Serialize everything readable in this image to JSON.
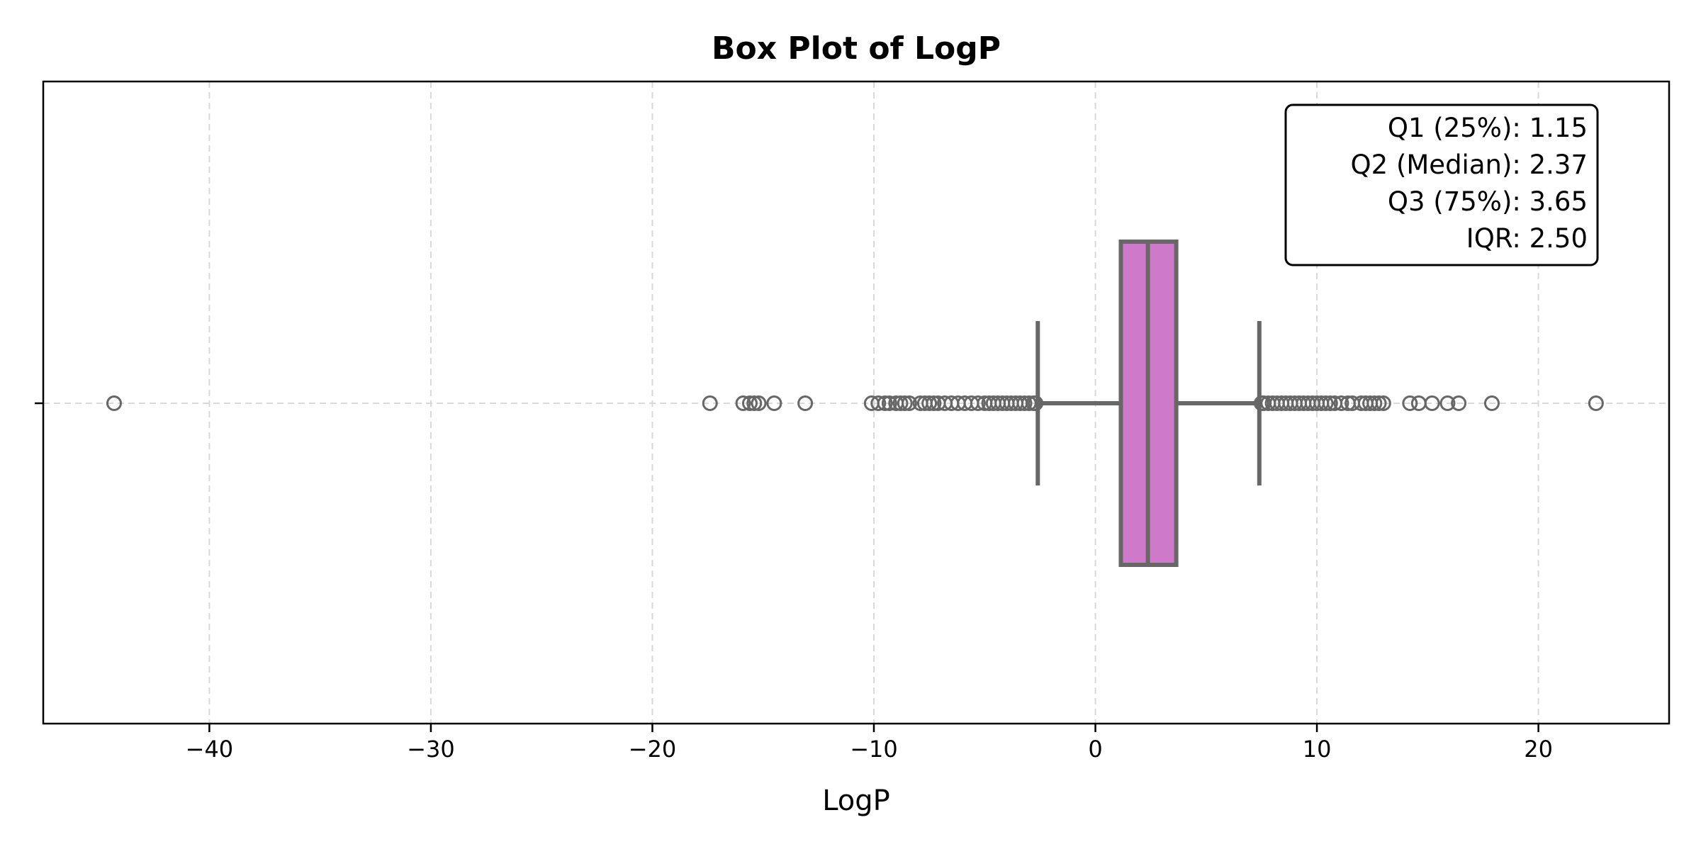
{
  "chart_data": {
    "type": "box",
    "title": "Box Plot of LogP",
    "xlabel": "LogP",
    "ylabel": "",
    "xlim": [
      -47.5,
      25.9
    ],
    "xticks": [
      -40,
      -30,
      -20,
      -10,
      0,
      10,
      20
    ],
    "xtick_labels": [
      "−40",
      "−30",
      "−20",
      "−10",
      "0",
      "10",
      "20"
    ],
    "grid": true,
    "orientation": "horizontal",
    "box": {
      "q1": 1.15,
      "median": 2.37,
      "q3": 3.65,
      "whisker_low": -2.6,
      "whisker_high": 7.4
    },
    "outliers": [
      -44.3,
      -17.4,
      -15.9,
      -15.6,
      -15.4,
      -15.2,
      -14.5,
      -13.1,
      -10.1,
      -9.8,
      -9.5,
      -9.3,
      -9.0,
      -8.8,
      -8.6,
      -8.4,
      -7.9,
      -7.7,
      -7.5,
      -7.3,
      -7.1,
      -6.8,
      -6.5,
      -6.2,
      -5.9,
      -5.6,
      -5.3,
      -5.0,
      -4.8,
      -4.6,
      -4.4,
      -4.2,
      -4.0,
      -3.8,
      -3.6,
      -3.4,
      -3.2,
      -3.0,
      -2.8,
      -2.7,
      7.5,
      7.6,
      7.8,
      8.0,
      8.2,
      8.4,
      8.6,
      8.8,
      9.0,
      9.2,
      9.4,
      9.6,
      9.8,
      10.0,
      10.2,
      10.4,
      10.6,
      10.8,
      11.1,
      11.4,
      11.6,
      12.0,
      12.2,
      12.4,
      12.6,
      12.8,
      13.0,
      14.2,
      14.6,
      15.2,
      15.9,
      16.4,
      17.9,
      22.6
    ],
    "colors": {
      "box_fill": "#cf79cb",
      "box_edge": "#676767",
      "grid": "#d9d9d9"
    },
    "annotation": {
      "lines": [
        "Q1 (25%): 1.15",
        "Q2 (Median): 2.37",
        "Q3 (75%): 3.65",
        "IQR: 2.50"
      ],
      "position": "top-right"
    }
  }
}
